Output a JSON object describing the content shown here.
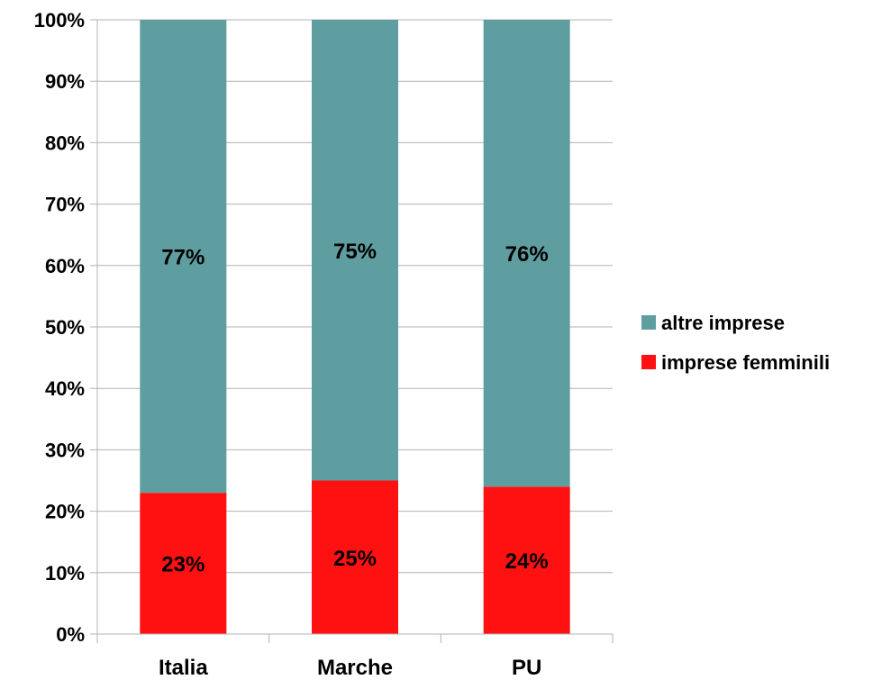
{
  "chart_data": {
    "type": "bar",
    "stacked": "percent",
    "categories": [
      "Italia",
      "Marche",
      "PU"
    ],
    "series": [
      {
        "name": "imprese femminili",
        "color": "#ff1111",
        "values": [
          23,
          25,
          24
        ],
        "labels": [
          "23%",
          "25%",
          "24%"
        ]
      },
      {
        "name": "altre imprese",
        "color": "#5f9ea0",
        "values": [
          77,
          75,
          76
        ],
        "labels": [
          "77%",
          "75%",
          "76%"
        ]
      }
    ],
    "y_ticks": [
      "0%",
      "10%",
      "20%",
      "30%",
      "40%",
      "50%",
      "60%",
      "70%",
      "80%",
      "90%",
      "100%"
    ],
    "ylim": [
      0,
      100
    ],
    "grid": true,
    "legend_position": "right"
  }
}
